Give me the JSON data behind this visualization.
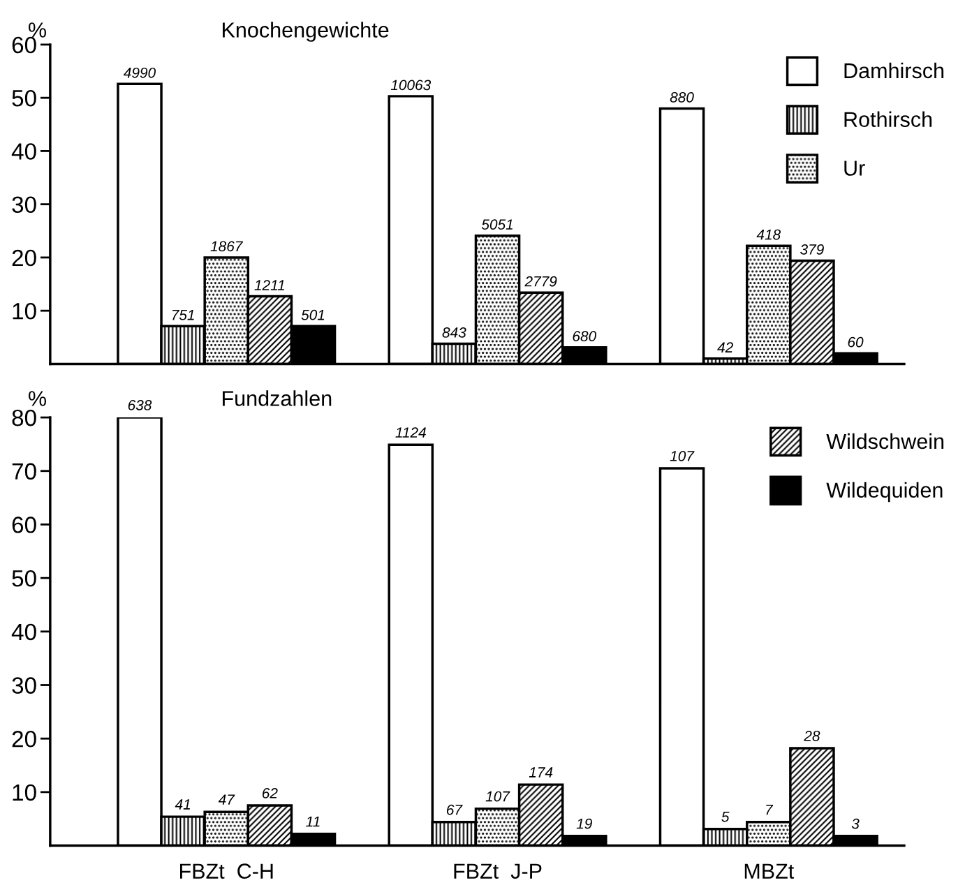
{
  "chart_data": [
    {
      "type": "bar",
      "title": "Knochengewichte",
      "ylabel": "%",
      "categories": [
        null,
        null,
        null
      ],
      "tick_labels": "y",
      "ylim": [
        0,
        60
      ],
      "yticks": [
        10,
        20,
        30,
        40,
        50,
        60
      ],
      "legend": "top right",
      "grid": false,
      "series": [
        {
          "name": "Damhirsch",
          "color": "#ffffff",
          "values": [
            52.6,
            50.3,
            48.0
          ]
        },
        {
          "name": "Rothirsch",
          "color": "#000000",
          "values": [
            7.1,
            3.8,
            1.0
          ]
        },
        {
          "name": "Ur",
          "color": "#000000",
          "values": [
            20.0,
            24.1,
            22.2
          ]
        },
        {
          "color": "#000000",
          "values": [
            12.7,
            13.4,
            19.4
          ]
        },
        {
          "color": "#000000",
          "values": [
            7.1,
            3.1,
            2.0
          ]
        }
      ],
      "annotations": [
        {
          "text": "4990",
          "y": 52.6
        },
        {
          "text": "10063",
          "y": 50.3
        },
        {
          "text": "880",
          "y": 48.0
        },
        {
          "text": "751",
          "y": 7.1
        },
        {
          "text": "843",
          "y": 3.8
        },
        {
          "text": "42",
          "y": 1.0
        },
        {
          "text": "1867",
          "y": 20.0
        },
        {
          "text": "5051",
          "y": 24.1
        },
        {
          "text": "418",
          "y": 22.2
        },
        {
          "text": "1211",
          "y": 12.7
        },
        {
          "text": "2779",
          "y": 13.4
        },
        {
          "text": "379",
          "y": 19.4
        },
        {
          "text": "501",
          "y": 7.1
        },
        {
          "text": "680",
          "y": 3.1
        },
        {
          "text": "60",
          "y": 2.0
        }
      ]
    },
    {
      "type": "bar",
      "title": "Fundzahlen",
      "ylabel": "%",
      "categories": [
        "FBZt  C-H",
        "FBZt  J-P",
        "MBZt"
      ],
      "ylim": [
        0,
        80
      ],
      "yticks": [
        10,
        20,
        30,
        40,
        50,
        60,
        70,
        80
      ],
      "legend": "top right",
      "grid": false,
      "series": [
        {
          "color": "#ffffff",
          "values": [
            80,
            74.9,
            70.5
          ]
        },
        {
          "color": "#000000",
          "values": [
            5.4,
            4.4,
            3.1
          ]
        },
        {
          "color": "#000000",
          "values": [
            6.3,
            6.9,
            4.4
          ]
        },
        {
          "name": "Wildschwein",
          "color": "#000000",
          "values": [
            7.5,
            11.4,
            18.2
          ]
        },
        {
          "name": "Wildequiden",
          "color": "#000000",
          "values": [
            2.2,
            1.8,
            1.8
          ]
        }
      ],
      "annotations": [
        {
          "text": "638",
          "y": 80
        },
        {
          "text": "1124",
          "y": 74.9
        },
        {
          "text": "107",
          "y": 70.5
        },
        {
          "text": "41",
          "y": 5.4
        },
        {
          "text": "67",
          "y": 4.4
        },
        {
          "text": "5",
          "y": 3.1
        },
        {
          "text": "47",
          "y": 6.3
        },
        {
          "text": "107",
          "y": 6.9
        },
        {
          "text": "7",
          "y": 4.4
        },
        {
          "text": "62",
          "y": 7.5
        },
        {
          "text": "174",
          "y": 11.4
        },
        {
          "text": "28",
          "y": 18.2
        },
        {
          "text": "11",
          "y": 2.2
        },
        {
          "text": "19",
          "y": 1.8
        },
        {
          "text": "3",
          "y": 1.8
        }
      ]
    }
  ]
}
